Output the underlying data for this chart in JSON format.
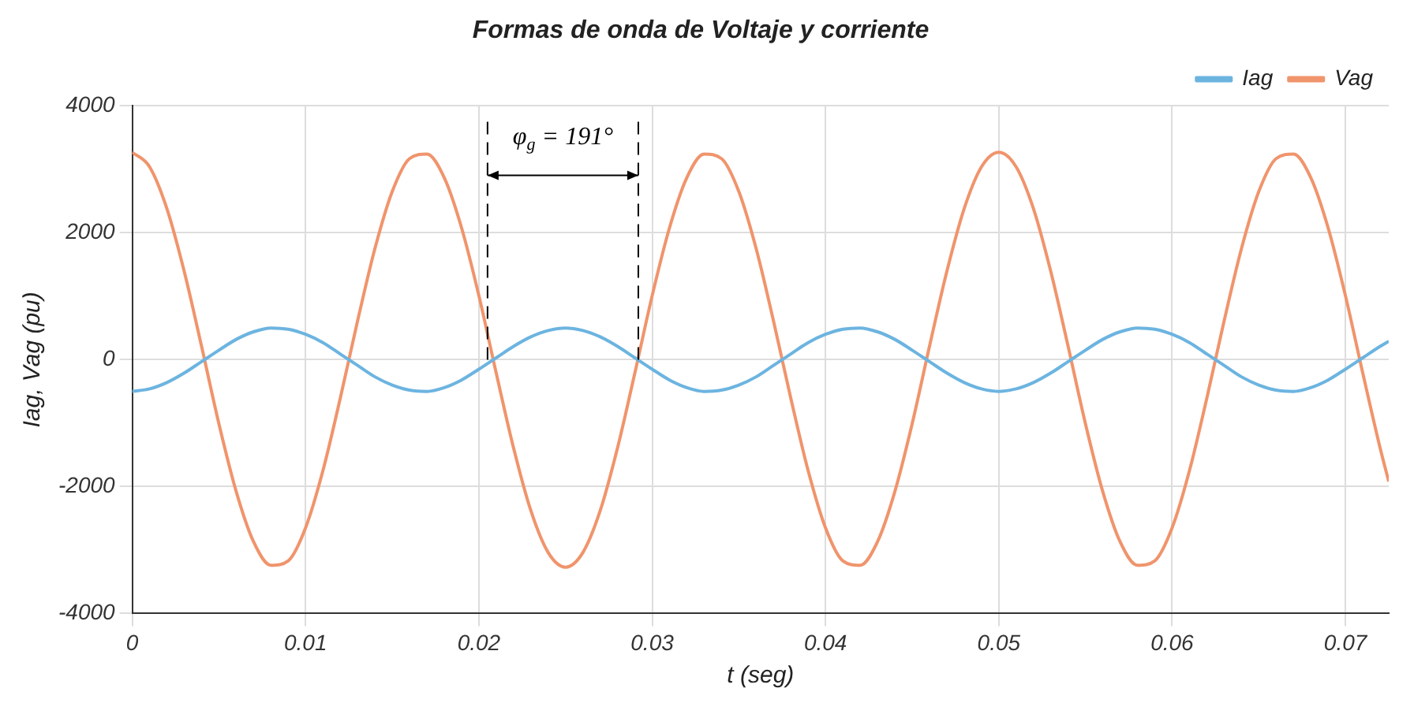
{
  "chart_data": {
    "type": "line",
    "title": "Formas de onda de Voltaje y corriente",
    "xlabel": "t (seg)",
    "ylabel": "Iag, Vag (pu)",
    "x": [
      0,
      0.001,
      0.002,
      0.003,
      0.004,
      0.005,
      0.006,
      0.007,
      0.008,
      0.009,
      0.01,
      0.011,
      0.012,
      0.013,
      0.014,
      0.015,
      0.016,
      0.017,
      0.018,
      0.019,
      0.02,
      0.021,
      0.022,
      0.023,
      0.024,
      0.025,
      0.026,
      0.027,
      0.028,
      0.029,
      0.03,
      0.031,
      0.032,
      0.033,
      0.034,
      0.035,
      0.036,
      0.037,
      0.038,
      0.039,
      0.04,
      0.041,
      0.042,
      0.043,
      0.044,
      0.045,
      0.046,
      0.047,
      0.048,
      0.049,
      0.05,
      0.051,
      0.052,
      0.053,
      0.054,
      0.055,
      0.056,
      0.057,
      0.058,
      0.059,
      0.06,
      0.061,
      0.062,
      0.063,
      0.064,
      0.065,
      0.066,
      0.067,
      0.068,
      0.069,
      0.07,
      0.071,
      0.072,
      0.0725
    ],
    "series": [
      {
        "name": "Iag",
        "color": "#6cb4e0",
        "values": [
          -500,
          -460,
          -360,
          -210,
          -30,
          150,
          320,
          440,
          500,
          480,
          400,
          270,
          90,
          -90,
          -270,
          -400,
          -480,
          -500,
          -440,
          -320,
          -150,
          30,
          210,
          360,
          460,
          500,
          460,
          360,
          210,
          30,
          -150,
          -320,
          -440,
          -500,
          -480,
          -400,
          -270,
          -90,
          90,
          270,
          400,
          480,
          500,
          440,
          320,
          150,
          -30,
          -210,
          -360,
          -460,
          -500,
          -460,
          -360,
          -210,
          -30,
          150,
          320,
          440,
          500,
          480,
          400,
          270,
          90,
          -90,
          -270,
          -400,
          -480,
          -500,
          -440,
          -320,
          -150,
          30,
          210,
          290
        ]
      },
      {
        "name": "Vag",
        "color": "#f0946c",
        "values": [
          3270,
          3040,
          2380,
          1390,
          210,
          -1010,
          -2080,
          -2870,
          -3240,
          -3170,
          -2650,
          -1750,
          -610,
          610,
          1750,
          2650,
          3170,
          3240,
          2870,
          2080,
          1010,
          -210,
          -1390,
          -2380,
          -3040,
          -3270,
          -3040,
          -2380,
          -1390,
          -210,
          1010,
          2080,
          2870,
          3240,
          3170,
          2650,
          1750,
          610,
          -610,
          -1750,
          -2650,
          -3170,
          -3240,
          -2870,
          -2080,
          -1010,
          210,
          1390,
          2380,
          3040,
          3270,
          3040,
          2380,
          1390,
          210,
          -1010,
          -2080,
          -2870,
          -3240,
          -3170,
          -2650,
          -1750,
          -610,
          610,
          1750,
          2650,
          3170,
          3240,
          2870,
          2080,
          1010,
          -210,
          -1390,
          -1920
        ]
      }
    ],
    "xlim": [
      0,
      0.0725
    ],
    "xticks": [
      0,
      0.01,
      0.02,
      0.03,
      0.04,
      0.05,
      0.06,
      0.07
    ],
    "ylim": [
      -4000,
      4000
    ],
    "yticks": [
      -4000,
      -2000,
      0,
      2000,
      4000
    ],
    "ref_lines": [
      {
        "axis": "x",
        "value": 0.0205,
        "line_style": "dashed",
        "color": "#000000"
      },
      {
        "axis": "x",
        "value": 0.0292,
        "line_style": "dashed",
        "color": "#000000"
      }
    ],
    "annotations": [
      "φ$_{g}$ = 191°"
    ],
    "grid": true,
    "legend": "top right",
    "marker": "none",
    "line_style": "solid"
  }
}
